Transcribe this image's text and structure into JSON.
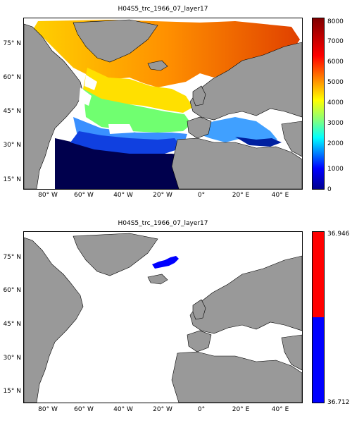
{
  "panels": [
    {
      "title": "H04S5_trc_1966_07_layer17",
      "y_ticks": [
        "75° N",
        "60° N",
        "45° N",
        "30° N",
        "15° N"
      ],
      "x_ticks": [
        "80° W",
        "60° W",
        "40° W",
        "20° W",
        "0°",
        "20° E",
        "40° E"
      ],
      "colorbar": {
        "type": "jet",
        "min": 0,
        "max": 8000,
        "labels": [
          "8000",
          "7000",
          "6000",
          "5000",
          "4000",
          "3000",
          "2000",
          "1000",
          "0"
        ]
      }
    },
    {
      "title": "H04S5_trc_1966_07_layer17",
      "y_ticks": [
        "75° N",
        "60° N",
        "45° N",
        "30° N",
        "15° N"
      ],
      "x_ticks": [
        "80° W",
        "60° W",
        "40° W",
        "20° W",
        "0°",
        "20° E",
        "40° E"
      ],
      "colorbar": {
        "type": "two-color",
        "colors": [
          "#ff0000",
          "#0000ff"
        ],
        "labels": [
          "36.946",
          "36.712"
        ]
      }
    }
  ],
  "colors": {
    "land": "#999999",
    "ocean_nodata": "#ffffff",
    "deep": "#00004d"
  }
}
